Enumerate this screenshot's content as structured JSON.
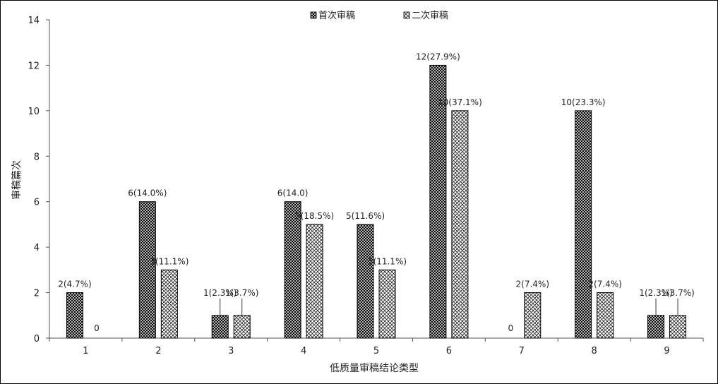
{
  "chart_data": {
    "type": "bar",
    "xlabel": "低质量审稿结论类型",
    "ylabel": "审稿篇次",
    "ylim": [
      0,
      14
    ],
    "yticks": [
      0,
      2,
      4,
      6,
      8,
      10,
      12,
      14
    ],
    "categories": [
      "1",
      "2",
      "3",
      "4",
      "5",
      "6",
      "7",
      "8",
      "9"
    ],
    "legend_position": "top-center",
    "series": [
      {
        "name": "首次审稿",
        "values": [
          2,
          6,
          1,
          6,
          5,
          12,
          0,
          10,
          1
        ],
        "labels": [
          "2(4.7%)",
          "6(14.0%)",
          "1(2.3%)",
          "6(14.0)",
          "5(11.6%)",
          "12(27.9%)",
          "0",
          "10(23.3%)",
          "1(2.3%)"
        ],
        "pattern": "dense-crosshatch"
      },
      {
        "name": "二次审稿",
        "values": [
          0,
          3,
          1,
          5,
          3,
          10,
          2,
          2,
          1
        ],
        "labels": [
          "0",
          "3(11.1%)",
          "1(3.7%)",
          "5(18.5%)",
          "3(11.1%)",
          "10(37.1%)",
          "2(7.4%)",
          "2(7.4%)",
          "1(3.7%)"
        ],
        "pattern": "light-crosshatch"
      }
    ]
  }
}
